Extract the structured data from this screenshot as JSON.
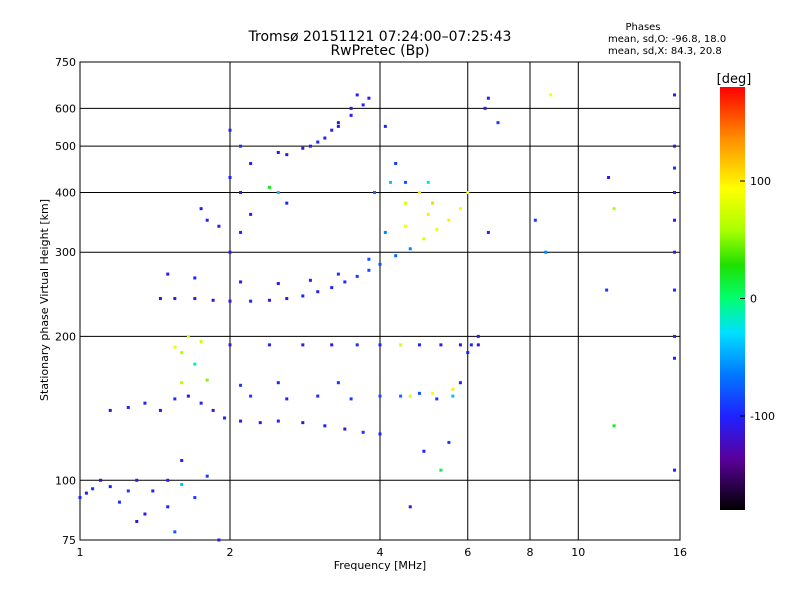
{
  "chart_data": {
    "type": "scatter",
    "title": "Tromsø 20151121 07:24:00–07:25:43",
    "subtitle": "RwPretec (Bp)",
    "xlabel": "Frequency [MHz]",
    "ylabel": "Stationary phase Virtual Height [km]",
    "x_scale": "log",
    "y_scale": "log",
    "xlim": [
      1,
      16
    ],
    "ylim": [
      75,
      750
    ],
    "x_ticks": [
      1,
      2,
      4,
      6,
      8,
      10,
      16
    ],
    "y_ticks": [
      75,
      100,
      200,
      300,
      400,
      500,
      600,
      750
    ],
    "grid": true,
    "stats": {
      "heading": "Phases",
      "line_o": "mean, sd,O: -96.8, 18.0",
      "line_x": "mean, sd,X:  84.3, 20.8"
    },
    "colorbar": {
      "label": "[deg]",
      "ticks": [
        100,
        0,
        -100
      ],
      "range": [
        -180,
        180
      ]
    },
    "series": [
      {
        "points": [
          [
            1.0,
            92,
            -100
          ],
          [
            1.03,
            94,
            -110
          ],
          [
            1.06,
            96,
            -95
          ],
          [
            1.1,
            100,
            -120
          ],
          [
            1.15,
            97,
            -100
          ],
          [
            1.2,
            90,
            -95
          ],
          [
            1.25,
            95,
            -90
          ],
          [
            1.3,
            100,
            -110
          ],
          [
            1.4,
            95,
            -100
          ],
          [
            1.5,
            100,
            -105
          ],
          [
            1.6,
            98,
            -40
          ],
          [
            1.7,
            92,
            -90
          ],
          [
            1.5,
            88,
            -100
          ],
          [
            1.35,
            85,
            -110
          ],
          [
            1.15,
            140,
            -120
          ],
          [
            1.25,
            142,
            -100
          ],
          [
            1.35,
            145,
            -105
          ],
          [
            1.45,
            140,
            -110
          ],
          [
            1.55,
            148,
            -95
          ],
          [
            1.65,
            150,
            -115
          ],
          [
            1.75,
            145,
            -100
          ],
          [
            1.85,
            140,
            -110
          ],
          [
            1.95,
            135,
            -100
          ],
          [
            2.1,
            133,
            -105
          ],
          [
            2.3,
            132,
            -110
          ],
          [
            2.5,
            133,
            -100
          ],
          [
            2.8,
            132,
            -115
          ],
          [
            3.1,
            130,
            -100
          ],
          [
            3.4,
            128,
            -110
          ],
          [
            3.7,
            126,
            -95
          ],
          [
            4.0,
            125,
            -100
          ],
          [
            2.2,
            150,
            -90
          ],
          [
            2.6,
            148,
            -100
          ],
          [
            3.0,
            150,
            -95
          ],
          [
            3.5,
            148,
            -90
          ],
          [
            4.0,
            150,
            -80
          ],
          [
            4.4,
            150,
            -70
          ],
          [
            4.8,
            152,
            -80
          ],
          [
            5.2,
            148,
            -90
          ],
          [
            5.6,
            150,
            -40
          ],
          [
            1.6,
            160,
            60
          ],
          [
            1.8,
            162,
            50
          ],
          [
            2.1,
            158,
            -90
          ],
          [
            2.5,
            160,
            -100
          ],
          [
            3.3,
            160,
            -95
          ],
          [
            4.6,
            150,
            80
          ],
          [
            5.1,
            152,
            90
          ],
          [
            5.6,
            155,
            100
          ],
          [
            2.0,
            192,
            -110
          ],
          [
            2.4,
            192,
            -100
          ],
          [
            2.8,
            192,
            -105
          ],
          [
            3.2,
            192,
            -110
          ],
          [
            3.6,
            192,
            -95
          ],
          [
            4.0,
            192,
            -100
          ],
          [
            4.4,
            192,
            80
          ],
          [
            4.8,
            192,
            -100
          ],
          [
            5.3,
            192,
            -105
          ],
          [
            5.8,
            192,
            -110
          ],
          [
            6.1,
            192,
            -100
          ],
          [
            6.3,
            192,
            -115
          ],
          [
            1.55,
            190,
            90
          ],
          [
            1.65,
            200,
            80
          ],
          [
            1.75,
            195,
            70
          ],
          [
            1.6,
            185,
            60
          ],
          [
            1.7,
            175,
            -20
          ],
          [
            1.45,
            240,
            -120
          ],
          [
            1.55,
            240,
            -110
          ],
          [
            1.7,
            240,
            -105
          ],
          [
            1.85,
            238,
            -115
          ],
          [
            2.0,
            237,
            -110
          ],
          [
            2.2,
            237,
            -100
          ],
          [
            2.4,
            238,
            -110
          ],
          [
            2.6,
            240,
            -105
          ],
          [
            2.8,
            243,
            -100
          ],
          [
            3.0,
            248,
            -105
          ],
          [
            3.2,
            253,
            -100
          ],
          [
            3.4,
            260,
            -95
          ],
          [
            3.6,
            267,
            -90
          ],
          [
            3.8,
            275,
            -85
          ],
          [
            4.0,
            283,
            -80
          ],
          [
            4.3,
            295,
            -70
          ],
          [
            4.6,
            305,
            -60
          ],
          [
            4.9,
            320,
            80
          ],
          [
            5.2,
            335,
            90
          ],
          [
            5.5,
            350,
            100
          ],
          [
            5.8,
            370,
            95
          ],
          [
            6.0,
            400,
            90
          ],
          [
            1.5,
            270,
            -110
          ],
          [
            1.7,
            265,
            -100
          ],
          [
            2.1,
            260,
            -105
          ],
          [
            2.5,
            258,
            -110
          ],
          [
            2.9,
            262,
            -100
          ],
          [
            3.3,
            270,
            -95
          ],
          [
            3.8,
            290,
            -80
          ],
          [
            4.1,
            330,
            -60
          ],
          [
            4.5,
            340,
            90
          ],
          [
            5.0,
            360,
            100
          ],
          [
            3.9,
            400,
            -70
          ],
          [
            4.2,
            420,
            -40
          ],
          [
            4.5,
            380,
            80
          ],
          [
            4.8,
            400,
            100
          ],
          [
            5.1,
            380,
            110
          ],
          [
            2.0,
            300,
            -110
          ],
          [
            2.1,
            330,
            -100
          ],
          [
            2.2,
            360,
            -105
          ],
          [
            2.1,
            400,
            -110
          ],
          [
            2.0,
            430,
            -100
          ],
          [
            2.2,
            460,
            -105
          ],
          [
            1.75,
            370,
            -110
          ],
          [
            1.8,
            350,
            -100
          ],
          [
            1.9,
            340,
            -105
          ],
          [
            2.5,
            400,
            -40
          ],
          [
            2.6,
            380,
            -100
          ],
          [
            2.4,
            410,
            20
          ],
          [
            2.6,
            480,
            -110
          ],
          [
            2.9,
            500,
            -105
          ],
          [
            3.1,
            520,
            -100
          ],
          [
            3.3,
            550,
            -110
          ],
          [
            3.5,
            580,
            -105
          ],
          [
            3.7,
            610,
            -100
          ],
          [
            3.8,
            630,
            -110
          ],
          [
            3.6,
            640,
            -100
          ],
          [
            3.5,
            600,
            -120
          ],
          [
            3.3,
            560,
            -110
          ],
          [
            3.2,
            540,
            -105
          ],
          [
            3.0,
            510,
            -100
          ],
          [
            2.8,
            495,
            -105
          ],
          [
            2.5,
            485,
            -110
          ],
          [
            2.0,
            540,
            -100
          ],
          [
            2.1,
            500,
            -95
          ],
          [
            4.1,
            550,
            -100
          ],
          [
            4.5,
            420,
            -80
          ],
          [
            5.0,
            420,
            -30
          ],
          [
            4.3,
            460,
            -90
          ],
          [
            6.6,
            630,
            -100
          ],
          [
            6.5,
            600,
            -110
          ],
          [
            6.6,
            330,
            -100
          ],
          [
            6.9,
            560,
            -90
          ],
          [
            8.2,
            350,
            -90
          ],
          [
            8.8,
            640,
            90
          ],
          [
            8.6,
            300,
            -60
          ],
          [
            11.5,
            430,
            -110
          ],
          [
            11.8,
            370,
            60
          ],
          [
            11.4,
            250,
            -90
          ],
          [
            11.8,
            130,
            20
          ],
          [
            15.6,
            640,
            -100
          ],
          [
            15.6,
            500,
            -110
          ],
          [
            15.6,
            450,
            -95
          ],
          [
            15.6,
            400,
            -100
          ],
          [
            15.6,
            350,
            -105
          ],
          [
            15.6,
            300,
            -110
          ],
          [
            15.6,
            250,
            -95
          ],
          [
            15.6,
            200,
            -100
          ],
          [
            15.6,
            180,
            -100
          ],
          [
            15.6,
            105,
            -100
          ],
          [
            6.3,
            200,
            -110
          ],
          [
            6.0,
            185,
            -100
          ],
          [
            5.8,
            160,
            -100
          ],
          [
            5.3,
            105,
            10
          ],
          [
            4.9,
            115,
            -100
          ],
          [
            4.6,
            88,
            -110
          ],
          [
            5.5,
            120,
            -90
          ],
          [
            1.9,
            75,
            -110
          ],
          [
            1.3,
            82,
            -120
          ],
          [
            1.55,
            78,
            -80
          ],
          [
            1.6,
            110,
            -100
          ],
          [
            1.8,
            102,
            -90
          ]
        ]
      }
    ]
  }
}
